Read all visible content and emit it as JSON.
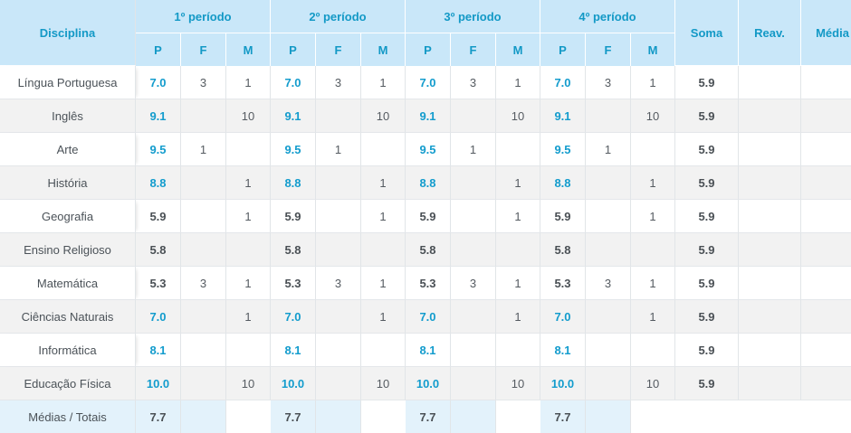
{
  "header": {
    "disciplina": "Disciplina",
    "periods": [
      "1º período",
      "2º período",
      "3º período",
      "4º período"
    ],
    "sub": {
      "p": "P",
      "f": "F",
      "m": "M"
    },
    "soma": "Soma",
    "reav": "Reav.",
    "media": "Média"
  },
  "rows": [
    {
      "name": "Língua Portuguesa",
      "p": "7.0",
      "f": "3",
      "m": "1",
      "soma": "5.9"
    },
    {
      "name": "Inglês",
      "p": "9.1",
      "f": "",
      "m": "10",
      "soma": "5.9"
    },
    {
      "name": "Arte",
      "p": "9.5",
      "f": "1",
      "m": "",
      "soma": "5.9"
    },
    {
      "name": "História",
      "p": "8.8",
      "f": "",
      "m": "1",
      "soma": "5.9"
    },
    {
      "name": "Geografia",
      "p": "5.9",
      "f": "",
      "m": "1",
      "soma": "5.9"
    },
    {
      "name": "Ensino Religioso",
      "p": "5.8",
      "f": "",
      "m": "",
      "soma": "5.9"
    },
    {
      "name": "Matemática",
      "p": "5.3",
      "f": "3",
      "m": "1",
      "soma": "5.9"
    },
    {
      "name": "Ciências Naturais",
      "p": "7.0",
      "f": "",
      "m": "1",
      "soma": "5.9"
    },
    {
      "name": "Informática",
      "p": "8.1",
      "f": "",
      "m": "",
      "soma": "5.9"
    },
    {
      "name": "Educação Física",
      "p": "10.0",
      "f": "",
      "m": "10",
      "soma": "5.9"
    }
  ],
  "totals": {
    "label": "Médias / Totais",
    "p": "7.7"
  },
  "colors": {
    "header_bg": "#c9e7f9",
    "accent": "#139ccd",
    "text": "#4a5055"
  }
}
